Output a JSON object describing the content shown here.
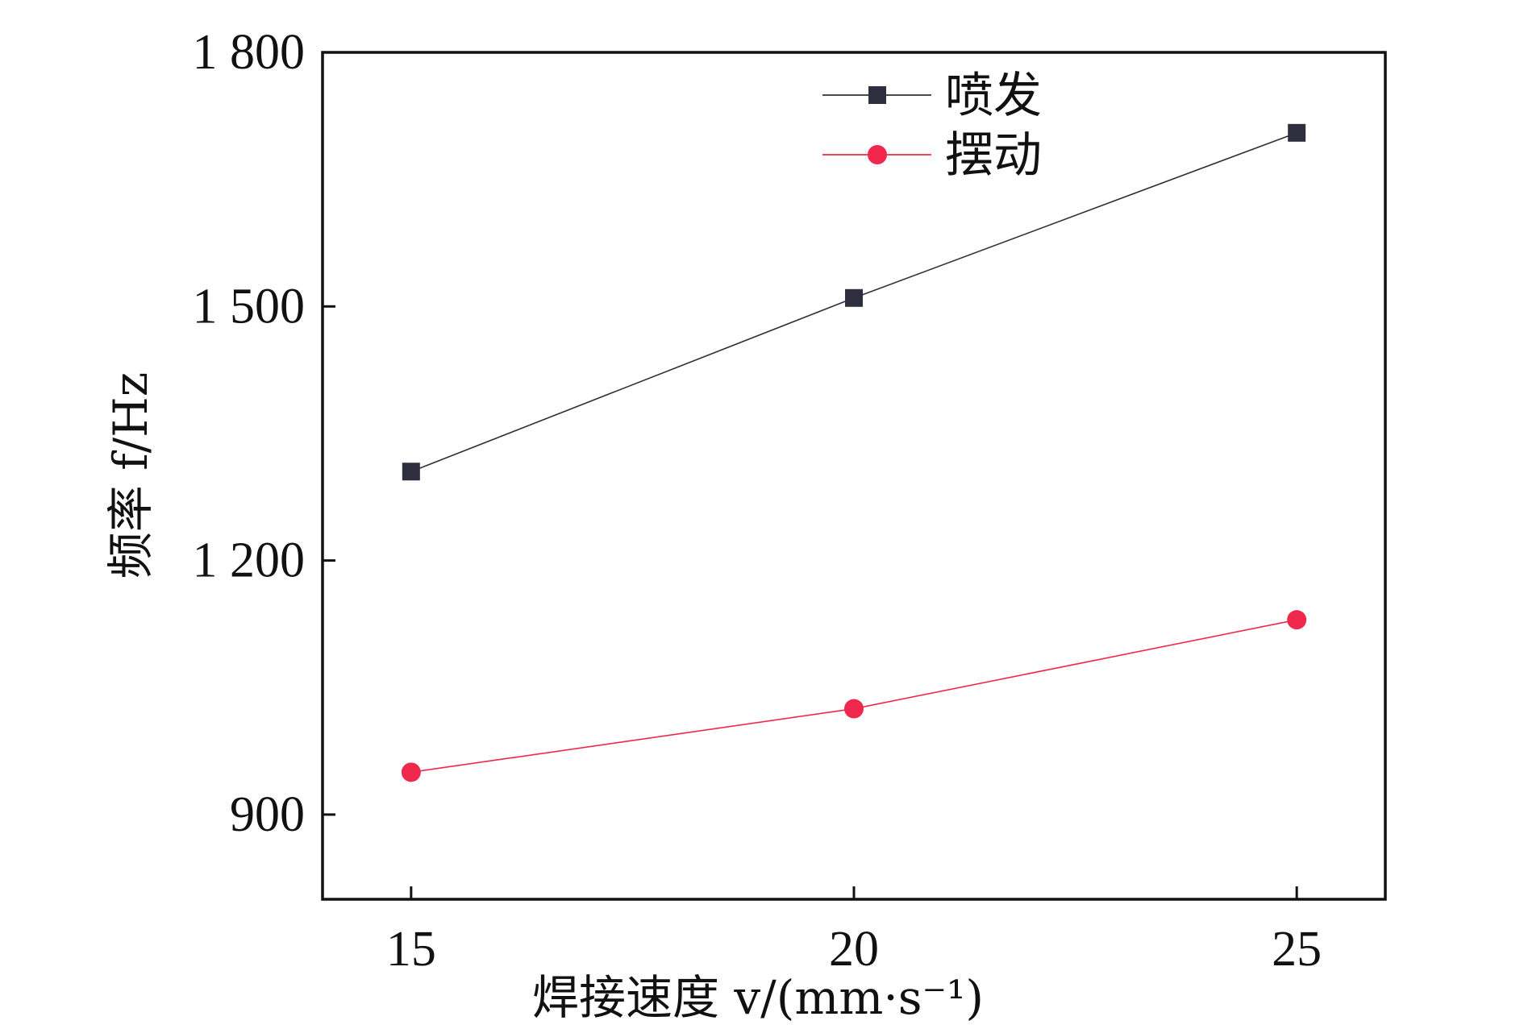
{
  "chart_data": {
    "type": "line",
    "xlabel": "焊接速度 v/(mm·s⁻¹)",
    "ylabel": "频率 f/Hz",
    "x": [
      15,
      20,
      25
    ],
    "xticks": [
      "15",
      "20",
      "25"
    ],
    "xlim": [
      14,
      26
    ],
    "ylim": [
      800,
      1800
    ],
    "yticks": [
      {
        "value": 900,
        "label": "900"
      },
      {
        "value": 1200,
        "label": "1 200"
      },
      {
        "value": 1500,
        "label": "1 500"
      },
      {
        "value": 1800,
        "label": "1 800"
      }
    ],
    "grid": false,
    "legend": "top-center",
    "series": [
      {
        "name": "喷发",
        "values": [
          1305,
          1510,
          1705
        ],
        "color": "#2e2e3e",
        "marker": "square"
      },
      {
        "name": "摆动",
        "values": [
          950,
          1025,
          1130
        ],
        "color": "#f0284e",
        "marker": "circle"
      }
    ]
  }
}
